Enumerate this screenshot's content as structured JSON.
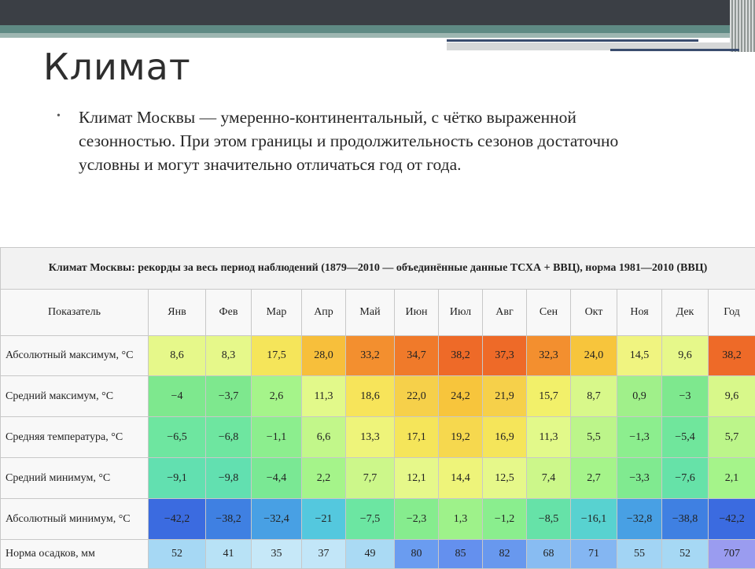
{
  "slide": {
    "title": "Климат",
    "bullet_text": "Климат Москвы — умеренно-континентальный, с чётко выраженной сезонностью. При этом границы и продолжительность сезонов достаточно условны и могут значительно отличаться год от года."
  },
  "table": {
    "caption": "Климат Москвы: рекорды за весь период наблюдений (1879—2010 — объединённые данные ТСХА + ВВЦ), норма 1981—2010 (ВВЦ)",
    "header_label": "Показатель",
    "months": [
      "Янв",
      "Фев",
      "Мар",
      "Апр",
      "Май",
      "Июн",
      "Июл",
      "Авг",
      "Сен",
      "Окт",
      "Ноя",
      "Дек",
      "Год"
    ],
    "rows": [
      {
        "label": "Абсолютный максимум, °C",
        "values": [
          "8,6",
          "8,3",
          "17,5",
          "28,0",
          "33,2",
          "34,7",
          "38,2",
          "37,3",
          "32,3",
          "24,0",
          "14,5",
          "9,6",
          "38,2"
        ],
        "colors": [
          "#e6f88a",
          "#e6f88a",
          "#f5e55a",
          "#f7bf3b",
          "#f38f2f",
          "#f07a2a",
          "#ee6a28",
          "#ee6a28",
          "#f38f2f",
          "#f7c53c",
          "#f0f480",
          "#e6f88a",
          "#ee6a28"
        ]
      },
      {
        "label": "Средний максимум, °C",
        "values": [
          "−4",
          "−3,7",
          "2,6",
          "11,3",
          "18,6",
          "22,0",
          "24,2",
          "21,9",
          "15,7",
          "8,7",
          "0,9",
          "−3",
          "9,6"
        ],
        "colors": [
          "#7ee88e",
          "#7ee88e",
          "#a5f48a",
          "#e2f98a",
          "#f7e45a",
          "#f6d04a",
          "#f7c53c",
          "#f6d04a",
          "#f2f06a",
          "#d8f88a",
          "#a0f08a",
          "#7ee88e",
          "#d8f88a"
        ]
      },
      {
        "label": "Средняя температура, °C",
        "values": [
          "−6,5",
          "−6,8",
          "−1,1",
          "6,6",
          "13,3",
          "17,1",
          "19,2",
          "16,9",
          "11,3",
          "5,5",
          "−1,3",
          "−5,4",
          "5,7"
        ],
        "colors": [
          "#6ee6a0",
          "#6ee6a0",
          "#8cee8e",
          "#c2f78a",
          "#eef47a",
          "#f5e55a",
          "#f6d84e",
          "#f5e55a",
          "#e2f98a",
          "#bcf58a",
          "#8cee8e",
          "#70e69c",
          "#bcf58a"
        ]
      },
      {
        "label": "Средний минимум, °C",
        "values": [
          "−9,1",
          "−9,8",
          "−4,4",
          "2,2",
          "7,7",
          "12,1",
          "14,4",
          "12,5",
          "7,4",
          "2,7",
          "−3,3",
          "−7,6",
          "2,1"
        ],
        "colors": [
          "#62e0b0",
          "#62e0b0",
          "#7ae894",
          "#a5f48a",
          "#ccf78a",
          "#e6f88a",
          "#eef47a",
          "#e6f88a",
          "#ccf78a",
          "#a5f48a",
          "#80ea90",
          "#66e2a8",
          "#a5f48a"
        ]
      },
      {
        "label": "Абсолютный минимум, °C",
        "values": [
          "−42,2",
          "−38,2",
          "−32,4",
          "−21",
          "−7,5",
          "−2,3",
          "1,3",
          "−1,2",
          "−8,5",
          "−16,1",
          "−32,8",
          "−38,8",
          "−42,2"
        ],
        "colors": [
          "#3b6be0",
          "#3f80e2",
          "#48a0e4",
          "#54c8de",
          "#6ce6a2",
          "#86ec8e",
          "#9ef28a",
          "#8aee8e",
          "#66e2a8",
          "#58d2d0",
          "#48a0e4",
          "#3f80e2",
          "#3b6be0"
        ]
      },
      {
        "label": "Норма осадков, мм",
        "values": [
          "52",
          "41",
          "35",
          "37",
          "49",
          "80",
          "85",
          "82",
          "68",
          "71",
          "55",
          "52",
          "707"
        ],
        "colors": [
          "#a6d8f4",
          "#b8e2f6",
          "#c6e8f8",
          "#c2e6f8",
          "#aadaf4",
          "#6a9cf0",
          "#6490ee",
          "#6898ee",
          "#88bcf2",
          "#84b6f2",
          "#a2d4f4",
          "#a6d8f4",
          "#9a9cf0"
        ]
      }
    ]
  }
}
